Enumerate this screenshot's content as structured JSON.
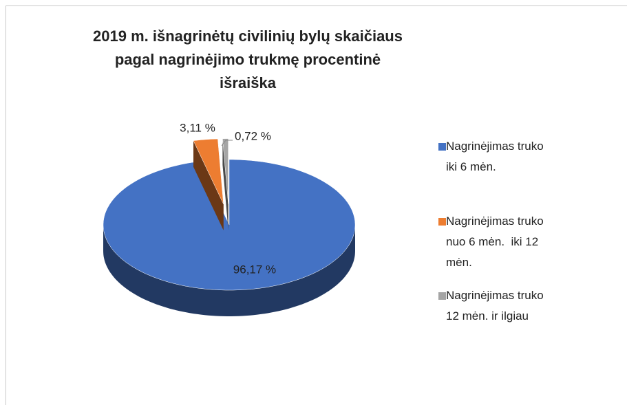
{
  "chart_data": {
    "type": "pie",
    "title": "2019 m. išnagrinėtų civilinių bylų skaičiaus pagal nagrinėjimo trukmę procentinė išraiška",
    "categories": [
      "Nagrinėjimas truko iki 6 mėn.",
      "Nagrinėjimas truko nuo 6 mėn.  iki 12 mėn.",
      "Nagrinėjimas truko 12 mėn. ir ilgiau"
    ],
    "values": [
      96.17,
      3.11,
      0.72
    ],
    "value_labels": [
      "96,17 %",
      "3,11 %",
      "0,72 %"
    ],
    "colors": [
      "#4472c4",
      "#ed7d31",
      "#a5a5a5"
    ],
    "legend": "right"
  }
}
